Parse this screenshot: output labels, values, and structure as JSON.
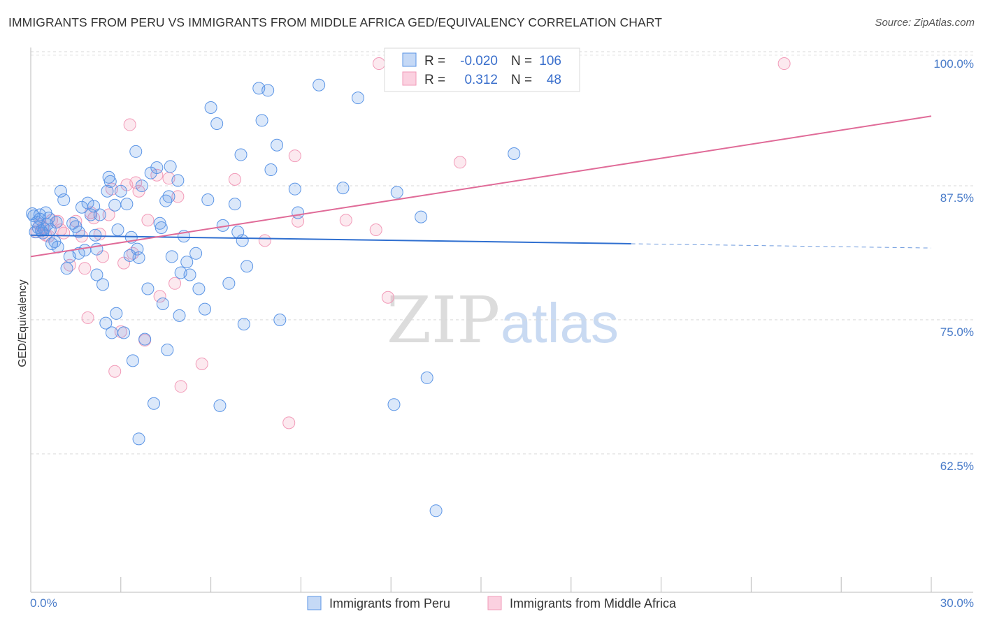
{
  "header": {
    "title": "IMMIGRANTS FROM PERU VS IMMIGRANTS FROM MIDDLE AFRICA GED/EQUIVALENCY CORRELATION CHART",
    "source": "Source: ZipAtlas.com"
  },
  "watermark": {
    "zip": "ZIP",
    "atlas": "atlas"
  },
  "colors": {
    "peru": "#5b95e6",
    "peru_line": "#2f6fd0",
    "africa": "#f29ab8",
    "africa_line": "#e06b98",
    "tick": "#4a7cc9"
  },
  "legend": {
    "rows": [
      {
        "r_label": "R =",
        "r_value": "-0.020",
        "n_label": "N =",
        "n_value": "106"
      },
      {
        "r_label": "R =",
        "r_value": "0.312",
        "n_label": "N =",
        "n_value": "48"
      }
    ]
  },
  "chart_data": {
    "type": "scatter",
    "title": "IMMIGRANTS FROM PERU VS IMMIGRANTS FROM MIDDLE AFRICA GED/EQUIVALENCY CORRELATION CHART",
    "ylabel": "GED/Equivalency",
    "xlabel": "",
    "x_ticks": [
      "0.0%",
      "30.0%"
    ],
    "y_ticks": [
      "100.0%",
      "87.5%",
      "75.0%",
      "62.5%"
    ],
    "xlim": [
      0,
      30
    ],
    "ylim": [
      50.7,
      101.5
    ],
    "grid": "horizontal dashed",
    "legend_position": "top-center",
    "bottom_legend": [
      "Immigrants from Peru",
      "Immigrants from Middle Africa"
    ],
    "series": [
      {
        "name": "Immigrants from Peru",
        "r": -0.02,
        "n": 106,
        "trend": {
          "x": [
            0,
            20
          ],
          "y": [
            84.0,
            83.2
          ],
          "dashed_to": [
            30,
            82.8
          ]
        },
        "points": [
          [
            0.1,
            85.8
          ],
          [
            0.15,
            84.3
          ],
          [
            0.2,
            85.2
          ],
          [
            0.25,
            84.7
          ],
          [
            0.3,
            85.5
          ],
          [
            0.35,
            84.4
          ],
          [
            0.4,
            84.2
          ],
          [
            0.45,
            84.6
          ],
          [
            0.5,
            86.1
          ],
          [
            0.55,
            85.0
          ],
          [
            0.6,
            85.6
          ],
          [
            0.65,
            84.5
          ],
          [
            0.7,
            83.2
          ],
          [
            0.8,
            83.4
          ],
          [
            0.85,
            85.2
          ],
          [
            0.9,
            82.9
          ],
          [
            1.0,
            88.1
          ],
          [
            1.1,
            87.3
          ],
          [
            1.2,
            80.9
          ],
          [
            1.3,
            82.0
          ],
          [
            1.4,
            85.1
          ],
          [
            1.5,
            84.8
          ],
          [
            1.6,
            84.3
          ],
          [
            1.7,
            86.6
          ],
          [
            1.8,
            82.6
          ],
          [
            1.9,
            87.0
          ],
          [
            2.0,
            85.9
          ],
          [
            2.1,
            86.7
          ],
          [
            2.15,
            84.0
          ],
          [
            2.2,
            82.7
          ],
          [
            2.3,
            85.9
          ],
          [
            2.4,
            79.4
          ],
          [
            2.5,
            75.8
          ],
          [
            2.55,
            88.1
          ],
          [
            2.6,
            89.4
          ],
          [
            2.65,
            89.0
          ],
          [
            2.7,
            74.9
          ],
          [
            2.8,
            86.8
          ],
          [
            2.85,
            76.7
          ],
          [
            2.9,
            84.5
          ],
          [
            3.0,
            88.1
          ],
          [
            3.1,
            74.9
          ],
          [
            3.2,
            86.9
          ],
          [
            3.3,
            82.1
          ],
          [
            3.35,
            83.8
          ],
          [
            3.4,
            72.3
          ],
          [
            3.5,
            91.8
          ],
          [
            3.55,
            82.7
          ],
          [
            3.6,
            81.9
          ],
          [
            3.7,
            88.6
          ],
          [
            3.8,
            74.3
          ],
          [
            3.9,
            79.0
          ],
          [
            4.0,
            89.8
          ],
          [
            4.1,
            68.3
          ],
          [
            4.2,
            90.3
          ],
          [
            4.3,
            85.1
          ],
          [
            4.35,
            84.7
          ],
          [
            4.4,
            77.6
          ],
          [
            4.5,
            87.2
          ],
          [
            4.55,
            73.3
          ],
          [
            4.6,
            87.6
          ],
          [
            4.65,
            90.4
          ],
          [
            4.7,
            82.0
          ],
          [
            4.9,
            89.1
          ],
          [
            4.95,
            76.5
          ],
          [
            5.0,
            80.5
          ],
          [
            5.1,
            83.9
          ],
          [
            5.2,
            81.5
          ],
          [
            5.3,
            80.3
          ],
          [
            5.5,
            82.3
          ],
          [
            5.6,
            79.0
          ],
          [
            5.8,
            77.1
          ],
          [
            5.9,
            87.3
          ],
          [
            6.0,
            95.9
          ],
          [
            6.2,
            94.4
          ],
          [
            6.3,
            68.1
          ],
          [
            6.4,
            84.9
          ],
          [
            6.6,
            79.5
          ],
          [
            6.8,
            86.9
          ],
          [
            6.9,
            84.3
          ],
          [
            7.0,
            91.5
          ],
          [
            7.05,
            83.5
          ],
          [
            7.1,
            75.7
          ],
          [
            7.2,
            81.1
          ],
          [
            7.6,
            97.7
          ],
          [
            7.7,
            94.7
          ],
          [
            7.9,
            97.5
          ],
          [
            8.0,
            90.1
          ],
          [
            8.2,
            92.4
          ],
          [
            8.3,
            76.1
          ],
          [
            8.8,
            88.3
          ],
          [
            8.9,
            86.1
          ],
          [
            9.6,
            98.0
          ],
          [
            10.4,
            88.4
          ],
          [
            10.9,
            96.8
          ],
          [
            12.1,
            68.2
          ],
          [
            12.2,
            88.0
          ],
          [
            13.0,
            85.7
          ],
          [
            13.2,
            70.7
          ],
          [
            13.5,
            58.3
          ],
          [
            16.1,
            91.6
          ],
          [
            3.6,
            65.0
          ],
          [
            2.2,
            80.3
          ],
          [
            1.6,
            82.3
          ],
          [
            0.3,
            85.9
          ],
          [
            0.05,
            86.0
          ]
        ]
      },
      {
        "name": "Immigrants from Middle Africa",
        "r": 0.312,
        "n": 48,
        "trend": {
          "x": [
            0,
            30
          ],
          "y": [
            82.0,
            95.1
          ]
        },
        "points": [
          [
            0.2,
            84.3
          ],
          [
            0.4,
            84.7
          ],
          [
            0.6,
            83.9
          ],
          [
            0.7,
            85.4
          ],
          [
            0.9,
            85.3
          ],
          [
            1.0,
            84.5
          ],
          [
            1.1,
            84.2
          ],
          [
            1.3,
            81.2
          ],
          [
            1.5,
            85.3
          ],
          [
            1.7,
            83.9
          ],
          [
            1.8,
            80.9
          ],
          [
            1.9,
            76.3
          ],
          [
            2.0,
            86.1
          ],
          [
            2.1,
            85.6
          ],
          [
            2.3,
            84.1
          ],
          [
            2.4,
            82.0
          ],
          [
            2.6,
            85.9
          ],
          [
            2.7,
            88.3
          ],
          [
            2.8,
            71.3
          ],
          [
            3.0,
            75.0
          ],
          [
            3.1,
            81.4
          ],
          [
            3.2,
            88.7
          ],
          [
            3.3,
            94.3
          ],
          [
            3.4,
            82.3
          ],
          [
            3.5,
            88.9
          ],
          [
            3.6,
            88.1
          ],
          [
            3.8,
            74.2
          ],
          [
            3.9,
            85.4
          ],
          [
            4.2,
            89.6
          ],
          [
            4.3,
            78.3
          ],
          [
            4.6,
            89.3
          ],
          [
            4.9,
            87.6
          ],
          [
            4.8,
            79.5
          ],
          [
            5.0,
            69.9
          ],
          [
            5.7,
            72.0
          ],
          [
            6.8,
            89.2
          ],
          [
            7.8,
            83.5
          ],
          [
            8.6,
            66.5
          ],
          [
            8.8,
            91.4
          ],
          [
            8.9,
            85.3
          ],
          [
            10.5,
            85.4
          ],
          [
            11.5,
            84.5
          ],
          [
            11.9,
            78.2
          ],
          [
            11.6,
            100.0
          ],
          [
            14.3,
            90.8
          ],
          [
            25.1,
            100.0
          ],
          [
            0.3,
            85.0
          ],
          [
            0.5,
            84.0
          ]
        ]
      }
    ]
  }
}
